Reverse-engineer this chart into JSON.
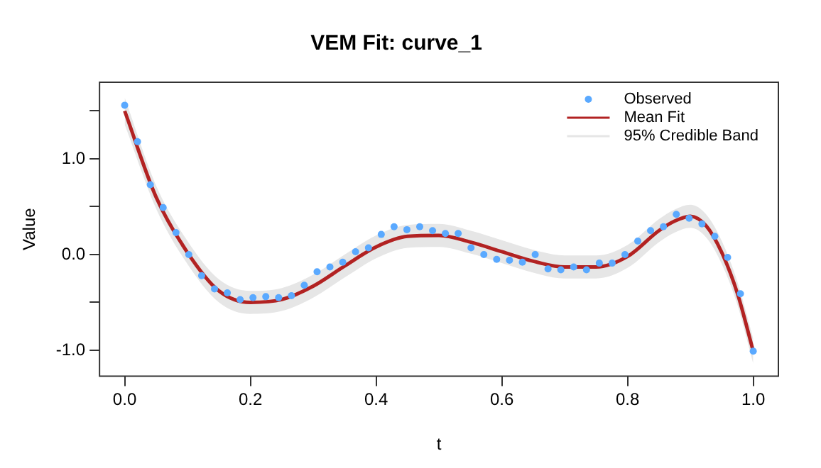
{
  "chart_data": {
    "type": "line",
    "title": "VEM Fit: curve_1",
    "xlabel": "t",
    "ylabel": "Value",
    "xlim": [
      -0.04,
      1.04
    ],
    "xticks": [
      {
        "value": 0,
        "label": "0.0"
      },
      {
        "value": 0.2,
        "label": "0.2"
      },
      {
        "value": 0.4,
        "label": "0.4"
      },
      {
        "value": 0.6,
        "label": "0.6"
      },
      {
        "value": 0.8,
        "label": "0.8"
      },
      {
        "value": 1,
        "label": "1.0"
      }
    ],
    "ylim": [
      -1.27,
      1.8
    ],
    "yticks": [
      {
        "value": -1,
        "label": "-1.0"
      },
      {
        "value": -0.5,
        "label": null
      },
      {
        "value": 0,
        "label": "0.0"
      },
      {
        "value": 0.5,
        "label": null
      },
      {
        "value": 1,
        "label": "1.0"
      },
      {
        "value": 1.5,
        "label": null
      }
    ],
    "grid": false,
    "legend": "top right",
    "annotations": [
      "95% Credible Band"
    ],
    "series": [
      {
        "name": "Mean Fit",
        "color": "#b22222",
        "x": [
          0,
          0.05,
          0.1,
          0.15,
          0.2,
          0.25,
          0.3,
          0.35,
          0.4,
          0.45,
          0.5,
          0.55,
          0.6,
          0.65,
          0.7,
          0.75,
          0.8,
          0.85,
          0.875,
          0.9,
          0.925,
          0.95,
          0.975,
          1
        ],
        "values": [
          1.5,
          0.6,
          0.02,
          -0.38,
          -0.5,
          -0.47,
          -0.33,
          -0.12,
          0.08,
          0.19,
          0.2,
          0.13,
          0.03,
          -0.07,
          -0.13,
          -0.13,
          -0.02,
          0.25,
          0.35,
          0.4,
          0.3,
          0.02,
          -0.41,
          -1.01
        ],
        "lower": [
          1.36,
          0.48,
          -0.1,
          -0.5,
          -0.62,
          -0.59,
          -0.45,
          -0.24,
          -0.04,
          0.07,
          0.08,
          0.01,
          -0.09,
          -0.19,
          -0.25,
          -0.25,
          -0.14,
          0.13,
          0.23,
          0.28,
          0.18,
          -0.1,
          -0.53,
          -1.14
        ],
        "upper": [
          1.64,
          0.72,
          0.14,
          -0.26,
          -0.38,
          -0.35,
          -0.21,
          0,
          0.2,
          0.31,
          0.32,
          0.25,
          0.15,
          0.05,
          -0.01,
          -0.01,
          0.1,
          0.37,
          0.47,
          0.52,
          0.42,
          0.14,
          -0.29,
          -0.88
        ]
      },
      {
        "name": "Observed",
        "type": "scatter",
        "color": "#5aa9ff",
        "x": [
          0,
          0.0204,
          0.0408,
          0.0612,
          0.0816,
          0.102,
          0.1224,
          0.1429,
          0.1633,
          0.1837,
          0.2041,
          0.2245,
          0.2449,
          0.2653,
          0.2857,
          0.3061,
          0.3265,
          0.3469,
          0.3673,
          0.3878,
          0.4082,
          0.4286,
          0.449,
          0.4694,
          0.4898,
          0.5102,
          0.5306,
          0.551,
          0.5714,
          0.5918,
          0.6122,
          0.6327,
          0.6531,
          0.6735,
          0.6939,
          0.7143,
          0.7347,
          0.7551,
          0.7755,
          0.7959,
          0.8163,
          0.8367,
          0.8571,
          0.8776,
          0.898,
          0.9184,
          0.9388,
          0.9592,
          0.9796,
          1
        ],
        "values": [
          1.56,
          1.18,
          0.73,
          0.49,
          0.23,
          0.0,
          -0.22,
          -0.36,
          -0.4,
          -0.47,
          -0.45,
          -0.44,
          -0.45,
          -0.43,
          -0.32,
          -0.18,
          -0.13,
          -0.08,
          0.03,
          0.07,
          0.21,
          0.29,
          0.26,
          0.29,
          0.25,
          0.22,
          0.22,
          0.07,
          0.0,
          -0.05,
          -0.06,
          -0.08,
          0.0,
          -0.15,
          -0.16,
          -0.13,
          -0.16,
          -0.09,
          -0.09,
          0.0,
          0.14,
          0.25,
          0.29,
          0.42,
          0.38,
          0.32,
          0.19,
          -0.03,
          -0.41,
          -1.01
        ]
      }
    ]
  }
}
